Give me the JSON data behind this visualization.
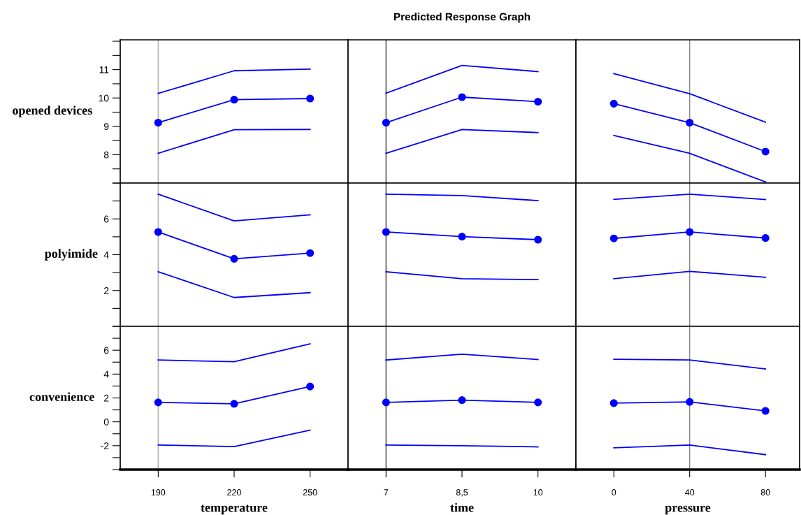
{
  "chart_data": [
    {
      "type": "line",
      "ylabel": "opened devices",
      "tick_labels": "y",
      "x": [
        190,
        220,
        250
      ],
      "xlim": [
        175,
        265
      ],
      "ylim": [
        7,
        12.05
      ],
      "yticks": [
        {
          "value": 7,
          "label": null
        },
        {
          "value": 7.5,
          "label": null
        },
        8,
        {
          "value": 8.5,
          "label": null
        },
        9,
        {
          "value": 9.5,
          "label": null
        },
        10,
        {
          "value": 10.5,
          "label": null
        },
        11,
        {
          "value": 11.5,
          "label": null
        },
        {
          "value": 12,
          "label": null
        }
      ],
      "ref_lines": [
        {
          "axis": "x",
          "value": 190,
          "color": "#aaaaaa"
        }
      ],
      "series": [
        {
          "color": "#0000ff",
          "marker": "none",
          "values": [
            10.16,
            10.96,
            11.02
          ]
        },
        {
          "color": "#0000ff",
          "marker": "circle",
          "values": [
            9.13,
            9.94,
            9.98
          ]
        },
        {
          "color": "#0000ff",
          "marker": "none",
          "values": [
            8.05,
            8.88,
            8.89
          ]
        }
      ]
    },
    {
      "type": "line",
      "title": "Predicted Response Graph",
      "tick_labels": false,
      "x": [
        7,
        8.5,
        10
      ],
      "xlim": [
        6.25,
        10.75
      ],
      "ylim": [
        7,
        12.05
      ],
      "ref_lines": [
        {
          "axis": "x",
          "value": 7,
          "color": "#444444"
        }
      ],
      "series": [
        {
          "color": "#0000ff",
          "marker": "none",
          "values": [
            10.17,
            11.15,
            10.93
          ]
        },
        {
          "color": "#0000ff",
          "marker": "circle",
          "values": [
            9.13,
            10.03,
            9.87
          ]
        },
        {
          "color": "#0000ff",
          "marker": "none",
          "values": [
            8.05,
            8.89,
            8.78
          ]
        }
      ]
    },
    {
      "type": "line",
      "tick_labels": false,
      "x": [
        0,
        40,
        80
      ],
      "xlim": [
        -20,
        98
      ],
      "ylim": [
        7,
        12.05
      ],
      "ref_lines": [
        {
          "axis": "x",
          "value": 40,
          "color": "#888888"
        }
      ],
      "series": [
        {
          "color": "#0000ff",
          "marker": "none",
          "values": [
            10.86,
            10.15,
            9.15
          ]
        },
        {
          "color": "#0000ff",
          "marker": "circle",
          "values": [
            9.8,
            9.13,
            8.11
          ]
        },
        {
          "color": "#0000ff",
          "marker": "none",
          "values": [
            8.68,
            8.05,
            7.04
          ]
        }
      ]
    },
    {
      "type": "line",
      "ylabel": "polyimide",
      "tick_labels": "y",
      "x": [
        190,
        220,
        250
      ],
      "xlim": [
        175,
        265
      ],
      "ylim": [
        0,
        8
      ],
      "yticks": [
        {
          "value": 0,
          "label": null
        },
        {
          "value": 1,
          "label": null
        },
        2,
        {
          "value": 3,
          "label": null
        },
        4,
        {
          "value": 5,
          "label": null
        },
        6,
        {
          "value": 7,
          "label": null
        },
        {
          "value": 8,
          "label": null
        }
      ],
      "ref_lines": [
        {
          "axis": "x",
          "value": 190,
          "color": "#aaaaaa"
        }
      ],
      "series": [
        {
          "color": "#0000ff",
          "marker": "none",
          "values": [
            7.38,
            5.89,
            6.23
          ]
        },
        {
          "color": "#0000ff",
          "marker": "circle",
          "values": [
            5.27,
            3.77,
            4.09
          ]
        },
        {
          "color": "#0000ff",
          "marker": "none",
          "values": [
            3.05,
            1.61,
            1.88
          ]
        }
      ]
    },
    {
      "type": "line",
      "tick_labels": false,
      "x": [
        7,
        8.5,
        10
      ],
      "xlim": [
        6.25,
        10.75
      ],
      "ylim": [
        0,
        8
      ],
      "ref_lines": [
        {
          "axis": "x",
          "value": 7,
          "color": "#444444"
        }
      ],
      "series": [
        {
          "color": "#0000ff",
          "marker": "none",
          "values": [
            7.38,
            7.3,
            7.02
          ]
        },
        {
          "color": "#0000ff",
          "marker": "circle",
          "values": [
            5.27,
            5.01,
            4.84
          ]
        },
        {
          "color": "#0000ff",
          "marker": "none",
          "values": [
            3.05,
            2.66,
            2.61
          ]
        }
      ]
    },
    {
      "type": "line",
      "tick_labels": false,
      "x": [
        0,
        40,
        80
      ],
      "xlim": [
        -20,
        98
      ],
      "ylim": [
        0,
        8
      ],
      "ref_lines": [
        {
          "axis": "x",
          "value": 40,
          "color": "#888888"
        }
      ],
      "series": [
        {
          "color": "#0000ff",
          "marker": "none",
          "values": [
            7.09,
            7.38,
            7.08
          ]
        },
        {
          "color": "#0000ff",
          "marker": "circle",
          "values": [
            4.91,
            5.27,
            4.93
          ]
        },
        {
          "color": "#0000ff",
          "marker": "none",
          "values": [
            2.66,
            3.07,
            2.74
          ]
        }
      ]
    },
    {
      "type": "line",
      "ylabel": "convenience",
      "xlabel": "temperature",
      "x": [
        190,
        220,
        250
      ],
      "xlim": [
        175,
        265
      ],
      "xticks": [
        190,
        220,
        250
      ],
      "ylim": [
        -4,
        8
      ],
      "yticks": [
        {
          "value": -4,
          "label": null
        },
        {
          "value": -3,
          "label": null
        },
        -2,
        {
          "value": -1,
          "label": null
        },
        0,
        {
          "value": 1,
          "label": null
        },
        2,
        {
          "value": 3,
          "label": null
        },
        4,
        {
          "value": 5,
          "label": null
        },
        6,
        {
          "value": 7,
          "label": null
        },
        {
          "value": 8,
          "label": null
        }
      ],
      "ref_lines": [
        {
          "axis": "x",
          "value": 190,
          "color": "#aaaaaa"
        }
      ],
      "series": [
        {
          "color": "#0000ff",
          "marker": "none",
          "values": [
            5.18,
            5.04,
            6.53
          ]
        },
        {
          "color": "#0000ff",
          "marker": "circle",
          "values": [
            1.63,
            1.51,
            2.96
          ]
        },
        {
          "color": "#0000ff",
          "marker": "none",
          "values": [
            -1.94,
            -2.08,
            -0.69
          ]
        }
      ]
    },
    {
      "type": "line",
      "xlabel": "time",
      "tick_labels": "x",
      "x": [
        7,
        8.5,
        10
      ],
      "xlim": [
        6.25,
        10.75
      ],
      "xticks": [
        7,
        {
          "value": 8.5,
          "label": "8,5"
        },
        10
      ],
      "ylim": [
        -4,
        8
      ],
      "ref_lines": [
        {
          "axis": "x",
          "value": 7,
          "color": "#444444"
        }
      ],
      "series": [
        {
          "color": "#0000ff",
          "marker": "none",
          "values": [
            5.18,
            5.67,
            5.22
          ]
        },
        {
          "color": "#0000ff",
          "marker": "circle",
          "values": [
            1.63,
            1.82,
            1.63
          ]
        },
        {
          "color": "#0000ff",
          "marker": "none",
          "values": [
            -1.94,
            -2.0,
            -2.1
          ]
        }
      ]
    },
    {
      "type": "line",
      "xlabel": "pressure",
      "tick_labels": "x",
      "x": [
        0,
        40,
        80
      ],
      "xlim": [
        -20,
        98
      ],
      "xticks": [
        0,
        40,
        80
      ],
      "ylim": [
        -4,
        8
      ],
      "ref_lines": [
        {
          "axis": "x",
          "value": 40,
          "color": "#888888"
        }
      ],
      "series": [
        {
          "color": "#0000ff",
          "marker": "none",
          "values": [
            5.24,
            5.18,
            4.43
          ]
        },
        {
          "color": "#0000ff",
          "marker": "circle",
          "values": [
            1.57,
            1.67,
            0.92
          ]
        },
        {
          "color": "#0000ff",
          "marker": "none",
          "values": [
            -2.18,
            -1.94,
            -2.75
          ]
        }
      ]
    }
  ]
}
